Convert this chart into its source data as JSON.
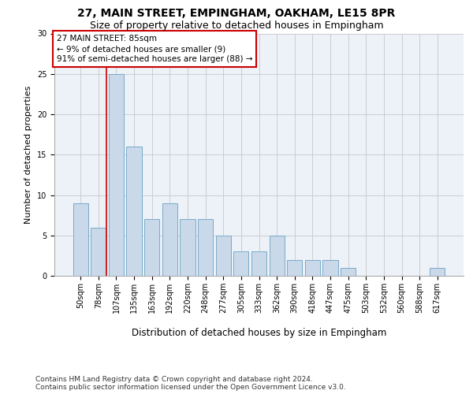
{
  "title1": "27, MAIN STREET, EMPINGHAM, OAKHAM, LE15 8PR",
  "title2": "Size of property relative to detached houses in Empingham",
  "xlabel": "Distribution of detached houses by size in Empingham",
  "ylabel": "Number of detached properties",
  "categories": [
    "50sqm",
    "78sqm",
    "107sqm",
    "135sqm",
    "163sqm",
    "192sqm",
    "220sqm",
    "248sqm",
    "277sqm",
    "305sqm",
    "333sqm",
    "362sqm",
    "390sqm",
    "418sqm",
    "447sqm",
    "475sqm",
    "503sqm",
    "532sqm",
    "560sqm",
    "588sqm",
    "617sqm"
  ],
  "values": [
    9,
    6,
    25,
    16,
    7,
    9,
    7,
    7,
    5,
    3,
    3,
    5,
    2,
    2,
    2,
    1,
    0,
    0,
    0,
    0,
    1
  ],
  "bar_color": "#c9d9ea",
  "bar_edge_color": "#7aaac8",
  "annotation_text": "27 MAIN STREET: 85sqm\n← 9% of detached houses are smaller (9)\n91% of semi-detached houses are larger (88) →",
  "annotation_box_edge_color": "#cc0000",
  "red_line_x": 1.43,
  "ylim": [
    0,
    30
  ],
  "yticks": [
    0,
    5,
    10,
    15,
    20,
    25,
    30
  ],
  "grid_color": "#c8c8c8",
  "bg_color": "#edf1f8",
  "footer": "Contains HM Land Registry data © Crown copyright and database right 2024.\nContains public sector information licensed under the Open Government Licence v3.0.",
  "title1_fontsize": 10,
  "title2_fontsize": 9,
  "xlabel_fontsize": 8.5,
  "ylabel_fontsize": 8,
  "tick_fontsize": 7,
  "annotation_fontsize": 7.5,
  "footer_fontsize": 6.5
}
